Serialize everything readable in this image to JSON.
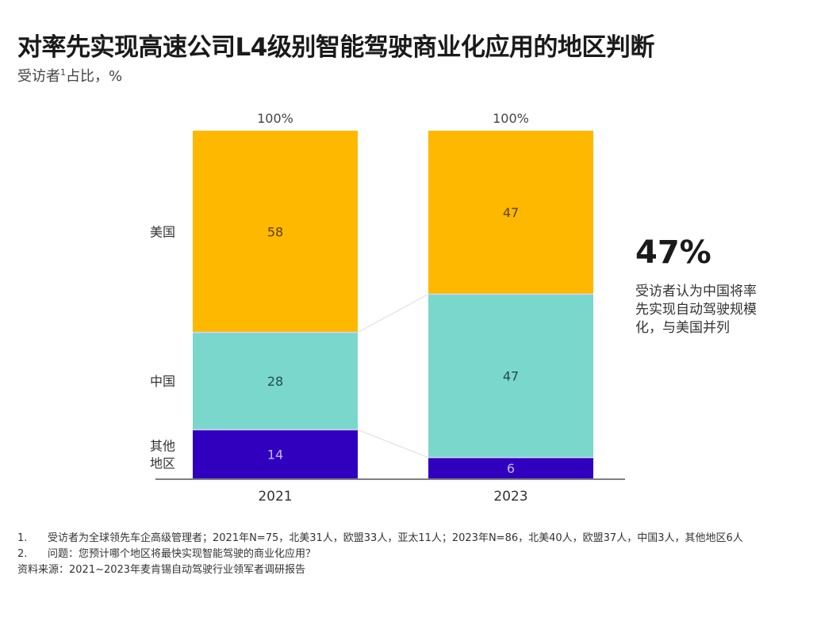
{
  "title": "对率先实现高速公司L4级别智能驾驶商业化应用的地区判断",
  "subtitle": {
    "text": "受访者",
    "sup": "1",
    "rest": "占比，%"
  },
  "callout": {
    "value": "47%",
    "text": "受访者认为中国将率先实现自动驾驶规模化，与美国并列"
  },
  "notes": [
    {
      "num": "1.",
      "text": "受访者为全球领先车企高级管理者；2021年N=75，北美31人，欧盟33人，亚太11人；2023年N=86，北美40人，欧盟37人，中国3人，其他地区6人"
    },
    {
      "num": "2.",
      "text": "问题：您预计哪个地区将最快实现智能驾驶的商业化应用？"
    }
  ],
  "source": "资料来源：2021~2023年麦肯锡自动驾驶行业领军者调研报告",
  "chart_data": {
    "type": "bar",
    "stacked": true,
    "categories": [
      "2021",
      "2023"
    ],
    "totals": [
      "100%",
      "100%"
    ],
    "series": [
      {
        "name": "其他地区",
        "label_lines": [
          "其他",
          "地区"
        ],
        "color": "#3000BE",
        "label_color": "#C8B4FF",
        "values": [
          14,
          6
        ]
      },
      {
        "name": "中国",
        "label_lines": [
          "中国"
        ],
        "color": "#7AD7CC",
        "label_color": "#1E4E48",
        "values": [
          28,
          47
        ]
      },
      {
        "name": "美国",
        "label_lines": [
          "美国"
        ],
        "color": "#FFB800",
        "label_color": "#5A4200",
        "values": [
          58,
          47
        ]
      }
    ],
    "ylim": [
      0,
      100
    ],
    "xlabel": "",
    "ylabel": ""
  }
}
